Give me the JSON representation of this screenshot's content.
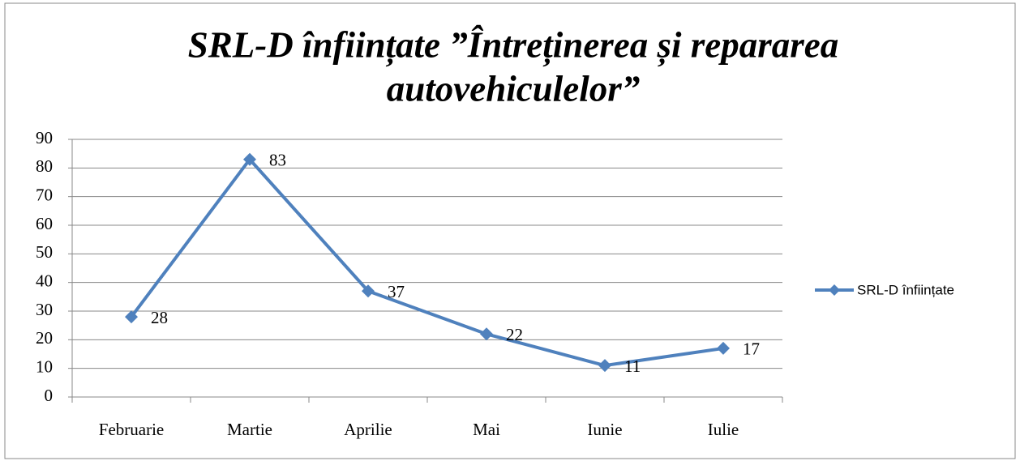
{
  "chart_data": {
    "type": "line",
    "title": [
      "SRL-D înființate ”Întreținerea și repararea",
      "autovehiculelor”"
    ],
    "categories": [
      "Februarie",
      "Martie",
      "Aprilie",
      "Mai",
      "Iunie",
      "Iulie"
    ],
    "series": [
      {
        "name": "SRL-D înființate",
        "color": "#4f81bd",
        "values": [
          28,
          83,
          37,
          22,
          11,
          17
        ]
      }
    ],
    "ylim": [
      0,
      90
    ],
    "yticks": [
      0,
      10,
      20,
      30,
      40,
      50,
      60,
      70,
      80,
      90
    ],
    "grid": true,
    "legend": "right"
  }
}
